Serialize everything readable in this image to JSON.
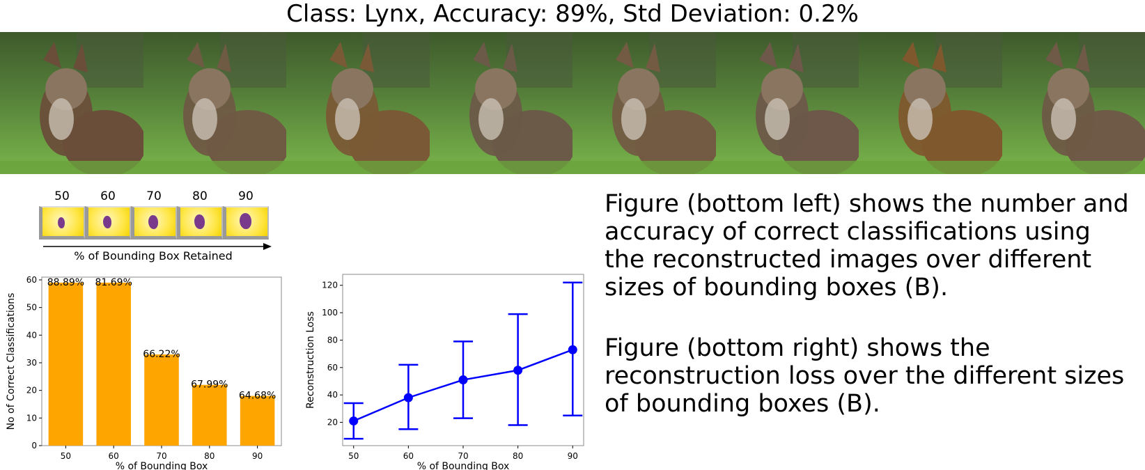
{
  "figure_title": "Class: Lynx, Accuracy: 89%, Std Deviation: 0.2%",
  "image_strip": {
    "count": 8,
    "subject": "cat-photo"
  },
  "bounding_boxes": {
    "labels": [
      "50",
      "60",
      "70",
      "80",
      "90"
    ],
    "caption": "% of Bounding Box Retained",
    "colors": {
      "box": "#ffe74a",
      "blob": "#7a3a8c"
    }
  },
  "description": {
    "paragraph_1": "Figure (bottom left) shows the number and accuracy of correct classifications using the reconstructed images over different sizes of bounding boxes (B).",
    "paragraph_2": "Figure (bottom right) shows the reconstruction loss over the different sizes of bounding boxes (B)."
  },
  "chart_data": [
    {
      "type": "bar",
      "categories": [
        "50",
        "60",
        "70",
        "80",
        "90"
      ],
      "values": [
        59,
        59,
        33,
        22,
        18
      ],
      "data_labels": [
        "88.89%",
        "81.69%",
        "66.22%",
        "67.99%",
        "64.68%"
      ],
      "title": "",
      "xlabel": "% of Bounding Box",
      "ylabel": "No of Correct Classifications",
      "ylim": [
        0,
        61
      ],
      "yticks": [
        0,
        10,
        20,
        30,
        40,
        50,
        60
      ],
      "grid": false,
      "color": "#ffa500"
    },
    {
      "type": "line",
      "x": [
        50,
        60,
        70,
        80,
        90
      ],
      "y": [
        21,
        38,
        51,
        58,
        73
      ],
      "error_low": [
        8,
        15,
        23,
        18,
        25
      ],
      "error_high": [
        34,
        62,
        79,
        99,
        122
      ],
      "title": "",
      "xlabel": "% of Bounding Box",
      "ylabel": "Reconstruction Loss",
      "xlim": [
        48,
        92
      ],
      "ylim": [
        3,
        128
      ],
      "xticks": [
        50,
        60,
        70,
        80,
        90
      ],
      "yticks": [
        20,
        40,
        60,
        80,
        100,
        120
      ],
      "grid": false,
      "color": "#0000ff"
    }
  ]
}
